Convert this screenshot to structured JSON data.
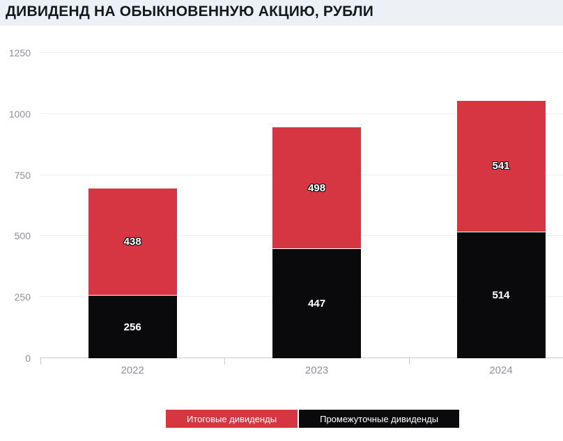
{
  "header": {
    "title": "ДИВИДЕНД НА ОБЫКНОВЕННУЮ АКЦИЮ, РУБЛИ"
  },
  "colors": {
    "final_dividend_red": "#d63642",
    "interim_dividend_black": "#0a0a0c",
    "header_background": "#edf0f4",
    "title_text": "#14181f",
    "gridline": "#eceef1",
    "axis_line": "#c3cdd7",
    "tick_label": "#8b919b",
    "bar_value_text": "#ffffff"
  },
  "chart_data": {
    "type": "bar",
    "variant": "stacked-vertical",
    "title": "ДИВИДЕНД НА ОБЫКНОВЕННУЮ АКЦИЮ, РУБЛИ",
    "categories": [
      "2022",
      "2023",
      "2024"
    ],
    "series": [
      {
        "name": "Промежуточные дивиденды",
        "color": "#0a0a0c",
        "values": [
          256,
          447,
          514
        ]
      },
      {
        "name": "Итоговые дивиденды",
        "color": "#d63642",
        "values": [
          438,
          498,
          541
        ]
      }
    ],
    "xlabel": "",
    "ylabel": "",
    "ylim": [
      0,
      1250
    ],
    "yticks": [
      0,
      250,
      500,
      750,
      1000,
      1250
    ],
    "grid": true,
    "legend_position": "bottom",
    "legend": [
      {
        "label": "Итоговые дивиденды",
        "color": "#d63642",
        "series_key": "final"
      },
      {
        "label": "Промежуточные дивиденды",
        "color": "#0a0a0c",
        "series_key": "interim"
      }
    ]
  }
}
